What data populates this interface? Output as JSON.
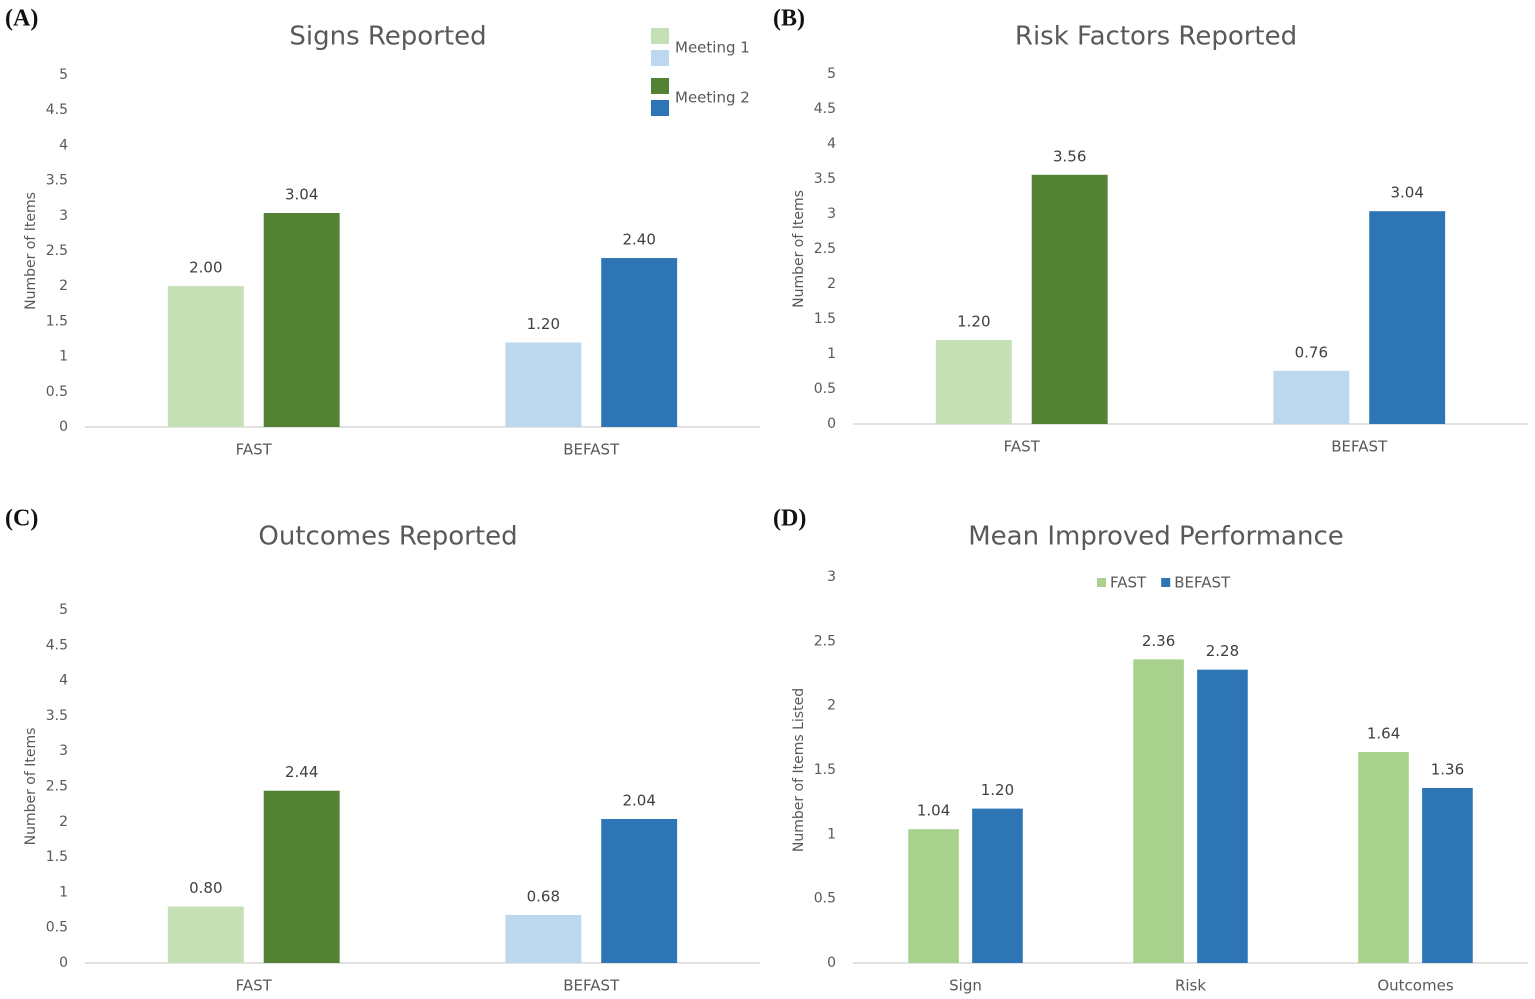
{
  "chart_data": [
    {
      "type": "bar",
      "panel_label": "(A)",
      "title": "Signs Reported",
      "y_label": "Number of Items",
      "categories": [
        "FAST",
        "BEFAST"
      ],
      "series": [
        {
          "name": "Meeting 1",
          "colors": [
            "#c5e0b4",
            "#bdd7ee"
          ],
          "values": [
            2.0,
            1.2
          ],
          "value_labels": [
            "2.00",
            "1.20"
          ]
        },
        {
          "name": "Meeting 2",
          "colors": [
            "#548235",
            "#2e75b6"
          ],
          "values": [
            3.04,
            2.4
          ],
          "value_labels": [
            "3.04",
            "2.40"
          ]
        }
      ],
      "ylim": [
        0,
        5
      ],
      "yticks": [
        0,
        0.5,
        1,
        1.5,
        2,
        2.5,
        3,
        3.5,
        4,
        4.5,
        5
      ],
      "grid": false,
      "legend": "top-right"
    },
    {
      "type": "bar",
      "panel_label": "(B)",
      "title": "Risk Factors Reported",
      "y_label": "Number of Items",
      "categories": [
        "FAST",
        "BEFAST"
      ],
      "series": [
        {
          "colors": [
            "#c5e0b4",
            "#bdd7ee"
          ],
          "values": [
            1.2,
            0.76
          ],
          "value_labels": [
            "1.20",
            "0.76"
          ]
        },
        {
          "colors": [
            "#548235",
            "#2e75b6"
          ],
          "values": [
            3.56,
            3.04
          ],
          "value_labels": [
            "3.56",
            "3.04"
          ]
        }
      ],
      "ylim": [
        0,
        5
      ],
      "yticks": [
        0,
        0.5,
        1,
        1.5,
        2,
        2.5,
        3,
        3.5,
        4,
        4.5,
        5
      ],
      "grid": false
    },
    {
      "type": "bar",
      "panel_label": "(C)",
      "title": "Outcomes Reported",
      "y_label": "Number of Items",
      "categories": [
        "FAST",
        "BEFAST"
      ],
      "series": [
        {
          "colors": [
            "#c5e0b4",
            "#bdd7ee"
          ],
          "values": [
            0.8,
            0.68
          ],
          "value_labels": [
            "0.80",
            "0.68"
          ]
        },
        {
          "colors": [
            "#548235",
            "#2e75b6"
          ],
          "values": [
            2.44,
            2.04
          ],
          "value_labels": [
            "2.44",
            "2.04"
          ]
        }
      ],
      "ylim": [
        0,
        5
      ],
      "yticks": [
        0,
        0.5,
        1,
        1.5,
        2,
        2.5,
        3,
        3.5,
        4,
        4.5,
        5
      ],
      "grid": false
    },
    {
      "type": "bar",
      "panel_label": "(D)",
      "title": "Mean Improved Performance",
      "y_label": "Number of Items Listed",
      "categories": [
        "Sign",
        "Risk",
        "Outcomes"
      ],
      "series": [
        {
          "name": "FAST",
          "color": "#a9d18e",
          "values": [
            1.04,
            2.36,
            1.64
          ],
          "value_labels": [
            "1.04",
            "2.36",
            "1.64"
          ]
        },
        {
          "name": "BEFAST",
          "color": "#2e75b6",
          "values": [
            1.2,
            2.28,
            1.36
          ],
          "value_labels": [
            "1.20",
            "2.28",
            "1.36"
          ]
        }
      ],
      "ylim": [
        0,
        3
      ],
      "yticks": [
        0,
        0.5,
        1,
        1.5,
        2,
        2.5,
        3
      ],
      "grid": false,
      "legend": "top"
    }
  ]
}
